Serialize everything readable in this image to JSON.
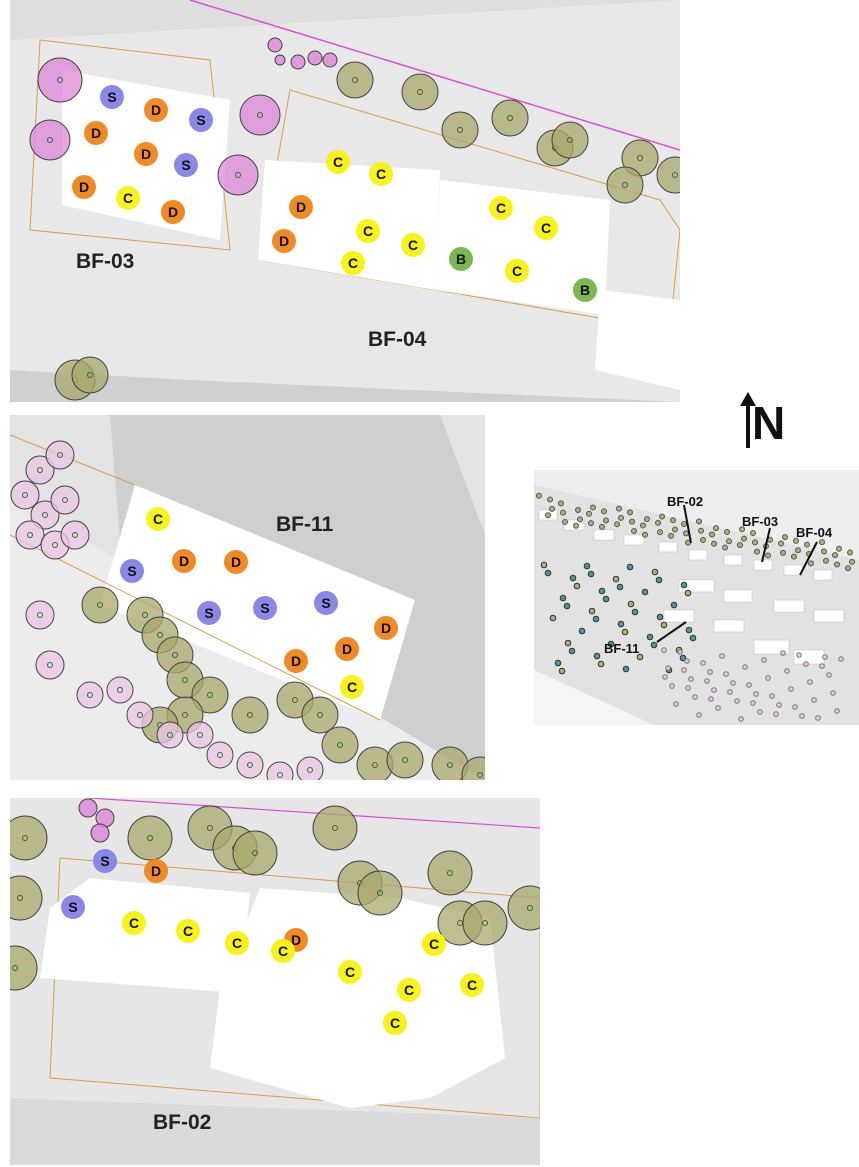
{
  "plans": [
    {
      "id": "BF-03/BF-04",
      "labels": [
        "BF-03",
        "BF-04"
      ],
      "markers": [
        "S",
        "D",
        "S",
        "D",
        "D",
        "S",
        "D",
        "C",
        "D",
        "C",
        "C",
        "D",
        "D",
        "C",
        "C",
        "C",
        "C",
        "C",
        "B",
        "C",
        "B"
      ]
    },
    {
      "id": "BF-11",
      "labels": [
        "BF-11"
      ],
      "markers": [
        "C",
        "S",
        "D",
        "D",
        "S",
        "S",
        "S",
        "D",
        "D",
        "D",
        "C"
      ]
    },
    {
      "id": "BF-02",
      "labels": [
        "BF-02"
      ],
      "markers": [
        "S",
        "D",
        "S",
        "C",
        "C",
        "D",
        "C",
        "C",
        "C",
        "C",
        "C",
        "C",
        "C"
      ]
    }
  ],
  "north_arrow": {
    "letter": "N"
  },
  "overview": {
    "labels": [
      "BF-02",
      "BF-03",
      "BF-04",
      "BF-11"
    ]
  },
  "legend_colors": {
    "S": "#8a87e6",
    "D": "#f08a24",
    "C": "#f7f21a",
    "B": "#79b94f",
    "tree_olive": "#a9a86b",
    "tree_pink": "#dc85d8",
    "tree_light_pink": "#e9c6e6",
    "tree_teal": "#3f8f8a"
  }
}
